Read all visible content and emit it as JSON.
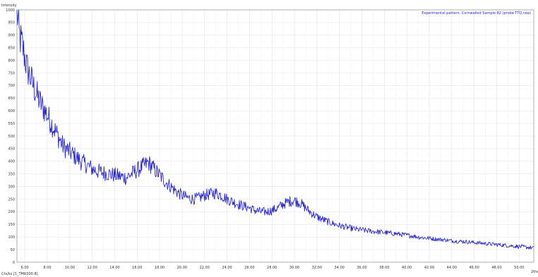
{
  "chart_data": {
    "type": "line",
    "ylabel": "Intensity",
    "xlabel": "2the",
    "status_text": "Cts/ks [1_TMR300.8]",
    "legend": "Experimental pattern: Cornwalled Sample 82 (probe-TTQ.raw)",
    "legend_placement": "top-right",
    "grid": true,
    "xlim": [
      5.3,
      51.3
    ],
    "ylim": [
      0,
      1000
    ],
    "x_ticks": [
      6,
      8,
      10,
      12,
      14,
      16,
      18,
      20,
      22,
      24,
      26,
      28,
      30,
      32,
      34,
      36,
      38,
      40,
      42,
      44,
      46,
      48,
      50
    ],
    "x_tick_labels": [
      "6.00",
      "8.00",
      "10.00",
      "12.00",
      "14.00",
      "16.00",
      "18.00",
      "20.00",
      "22.00",
      "24.00",
      "26.00",
      "28.00",
      "30.00",
      "32.00",
      "34.00",
      "36.00",
      "38.00",
      "40.00",
      "42.00",
      "44.00",
      "46.00",
      "48.00",
      "50.00"
    ],
    "y_ticks": [
      0,
      50,
      100,
      150,
      200,
      250,
      300,
      350,
      400,
      450,
      500,
      550,
      600,
      650,
      700,
      750,
      800,
      850,
      900,
      950,
      1000
    ],
    "y_tick_labels": [
      "0",
      "50",
      "100",
      "150",
      "200",
      "250",
      "300",
      "350",
      "400",
      "450",
      "500",
      "550",
      "600",
      "650",
      "700",
      "750",
      "800",
      "850",
      "900",
      "950",
      "1000"
    ],
    "series": [
      {
        "color": "#2a2ad0",
        "x": [
          5.3,
          5.5,
          5.8,
          6.2,
          6.6,
          7.0,
          7.4,
          7.8,
          8.2,
          8.6,
          9.0,
          9.4,
          9.8,
          10.2,
          10.6,
          11.0,
          11.5,
          12.0,
          12.5,
          13.0,
          13.5,
          14.0,
          14.5,
          15.0,
          15.5,
          16.0,
          16.5,
          17.0,
          17.5,
          18.0,
          18.5,
          19.0,
          19.5,
          20.0,
          20.5,
          21.0,
          21.5,
          22.0,
          22.5,
          23.0,
          23.5,
          24.0,
          24.5,
          25.0,
          25.5,
          26.0,
          26.5,
          27.0,
          27.5,
          28.0,
          28.5,
          29.0,
          29.5,
          30.0,
          30.5,
          31.0,
          31.5,
          32.0,
          32.5,
          33.0,
          33.5,
          34.0,
          34.5,
          35.0,
          35.5,
          36.0,
          36.5,
          37.0,
          37.5,
          38.0,
          38.5,
          39.0,
          39.5,
          40.0,
          40.5,
          41.0,
          41.5,
          42.0,
          42.5,
          43.0,
          43.5,
          44.0,
          44.5,
          45.0,
          45.5,
          46.0,
          46.5,
          47.0,
          47.5,
          48.0,
          48.5,
          49.0,
          49.5,
          50.0,
          50.5,
          51.0,
          51.3
        ],
        "y": [
          1000,
          900,
          855,
          770,
          720,
          670,
          630,
          600,
          565,
          530,
          495,
          460,
          445,
          430,
          415,
          400,
          385,
          370,
          360,
          355,
          350,
          345,
          340,
          335,
          350,
          365,
          380,
          395,
          370,
          345,
          320,
          300,
          280,
          265,
          255,
          250,
          255,
          265,
          270,
          275,
          265,
          250,
          240,
          230,
          222,
          215,
          205,
          200,
          200,
          205,
          215,
          230,
          240,
          245,
          235,
          215,
          195,
          180,
          170,
          160,
          152,
          145,
          140,
          135,
          130,
          128,
          125,
          122,
          120,
          118,
          115,
          113,
          110,
          107,
          104,
          100,
          97,
          95,
          92,
          90,
          88,
          85,
          83,
          82,
          80,
          78,
          76,
          74,
          72,
          70,
          68,
          66,
          64,
          62,
          60,
          58,
          55
        ]
      }
    ]
  }
}
